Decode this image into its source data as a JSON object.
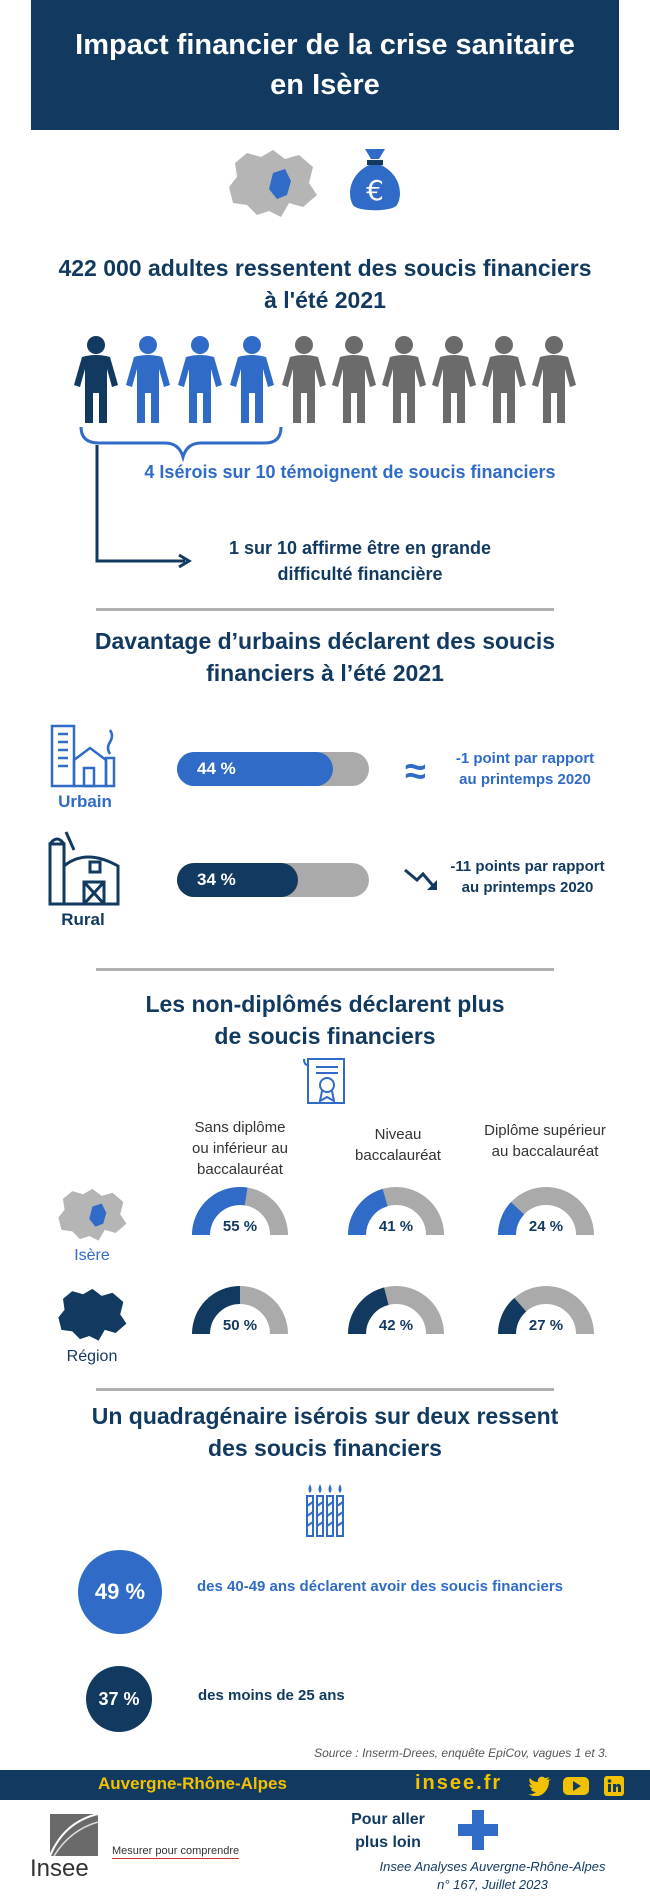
{
  "header": {
    "title_line1": "Impact financier de la crise sanitaire",
    "title_line2": "en Isère"
  },
  "section1": {
    "title_line1": "422 000 adultes ressentent des soucis financiers",
    "title_line2": "à l'été 2021",
    "stat_4_in_10": "4 Isérois sur 10 témoignent de soucis financiers",
    "stat_1_in_10_line1": "1 sur 10 affirme être en grande",
    "stat_1_in_10_line2": "difficulté financière"
  },
  "section2": {
    "title_line1": "Davantage d’urbains déclarent des soucis",
    "title_line2": "financiers à l’été 2021",
    "urbain": {
      "label": "Urbain",
      "value": 44,
      "value_label": "44 %",
      "trend_symbol": "≈",
      "note_line1": "-1 point par rapport",
      "note_line2": "au printemps 2020"
    },
    "rural": {
      "label": "Rural",
      "value": 34,
      "value_label": "34 %",
      "note_line1": "-11 points par rapport",
      "note_line2": "au printemps 2020"
    }
  },
  "section3": {
    "title_line1": "Les non-diplômés déclarent plus",
    "title_line2": "de soucis financiers",
    "columns": [
      {
        "l1": "Sans diplôme",
        "l2": "ou inférieur au",
        "l3": "baccalauréat"
      },
      {
        "l1": "Niveau",
        "l2": "baccalauréat",
        "l3": ""
      },
      {
        "l1": "Diplôme supérieur",
        "l2": "au baccalauréat",
        "l3": ""
      }
    ],
    "rows": [
      {
        "label": "Isère",
        "values": [
          55,
          41,
          24
        ],
        "labels": [
          "55 %",
          "41 %",
          "24 %"
        ]
      },
      {
        "label": "Région",
        "values": [
          50,
          42,
          27
        ],
        "labels": [
          "50 %",
          "42 %",
          "27 %"
        ]
      }
    ]
  },
  "section4": {
    "title_line1": "Un quadragénaire isérois sur deux ressent",
    "title_line2": "des soucis financiers",
    "stat1": {
      "value": "49 %",
      "text": "des 40-49 ans déclarent avoir des soucis financiers"
    },
    "stat2": {
      "value": "37 %",
      "text": "des moins de 25 ans"
    }
  },
  "source": "Source  : Inserm-Drees, enquête EpiCov, vagues 1 et 3.",
  "footer": {
    "region": "Auvergne-Rhône-Alpes",
    "site": "insee.fr",
    "more_line1": "Pour aller",
    "more_line2": "plus loin",
    "logo_text": "Insee",
    "tagline": "Mesurer pour comprendre",
    "pub_line1": "Insee Analyses Auvergne-Rhône-Alpes",
    "pub_line2": "n° 167, Juillet 2023"
  },
  "colors": {
    "navy": "#12395f",
    "blue": "#2f6bc7",
    "gray": "#aaaaaa",
    "dark_gray": "#666666"
  }
}
